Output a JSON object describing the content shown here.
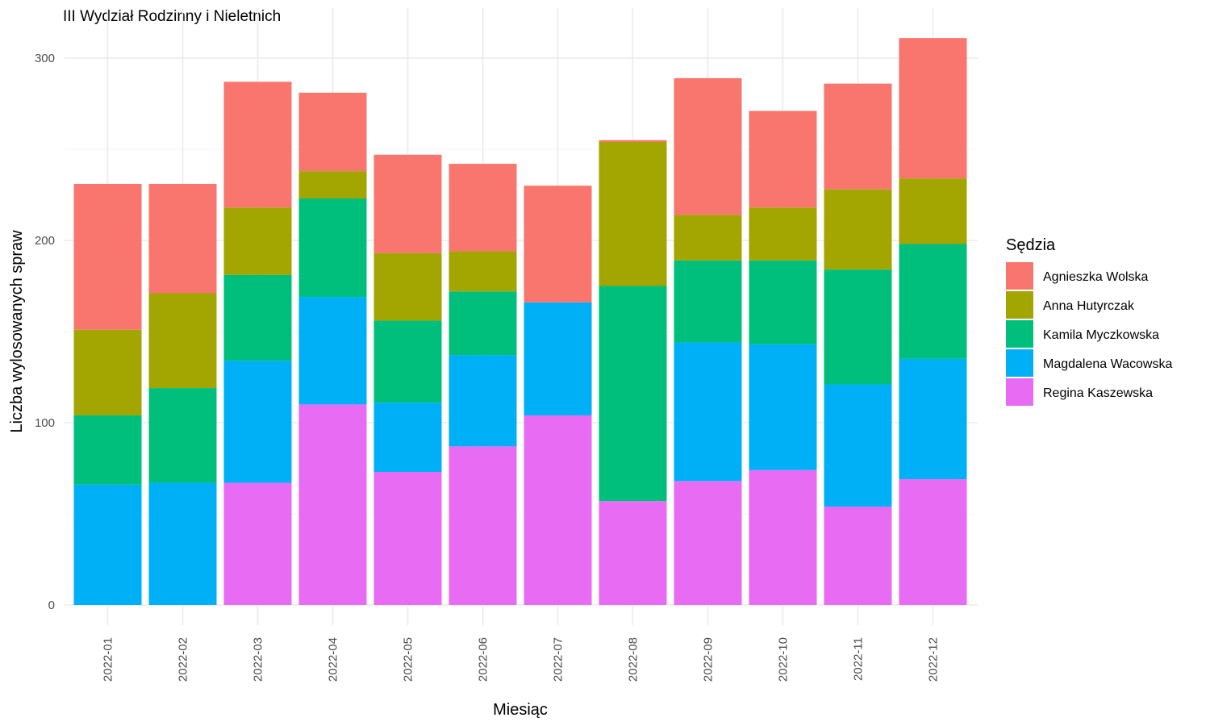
{
  "chart_data": {
    "type": "bar",
    "stacked": true,
    "title": "III Wydział Rodzinny i Nieletnich",
    "xlabel": "Miesiąc",
    "ylabel": "Liczba wylosowanych spraw",
    "ylim": [
      0,
      320
    ],
    "yticks": [
      0,
      100,
      200,
      300
    ],
    "grid": true,
    "legend_title": "Sędzia",
    "legend_position": "right",
    "categories": [
      "2022-01",
      "2022-02",
      "2022-03",
      "2022-04",
      "2022-05",
      "2022-06",
      "2022-07",
      "2022-08",
      "2022-09",
      "2022-10",
      "2022-11",
      "2022-12"
    ],
    "series": [
      {
        "name": "Regina Kaszewska",
        "color": "#E76BF3",
        "values": [
          0,
          0,
          67,
          110,
          73,
          87,
          104,
          57,
          68,
          74,
          54,
          69
        ]
      },
      {
        "name": "Magdalena Wacowska",
        "color": "#00B0F6",
        "values": [
          66,
          67,
          67,
          59,
          38,
          50,
          62,
          0,
          76,
          69,
          67,
          66
        ]
      },
      {
        "name": "Kamila Myczkowska",
        "color": "#00BF7D",
        "values": [
          38,
          52,
          47,
          54,
          45,
          35,
          0,
          118,
          45,
          46,
          63,
          63
        ]
      },
      {
        "name": "Anna Hutyrczak",
        "color": "#A3A500",
        "values": [
          47,
          52,
          37,
          15,
          37,
          22,
          0,
          79,
          25,
          29,
          44,
          36
        ]
      },
      {
        "name": "Agnieszka Wolska",
        "color": "#F8766D",
        "values": [
          80,
          60,
          69,
          43,
          54,
          48,
          64,
          1,
          75,
          53,
          58,
          77
        ]
      }
    ],
    "legend_order": [
      "Agnieszka Wolska",
      "Anna Hutyrczak",
      "Kamila Myczkowska",
      "Magdalena Wacowska",
      "Regina Kaszewska"
    ]
  }
}
